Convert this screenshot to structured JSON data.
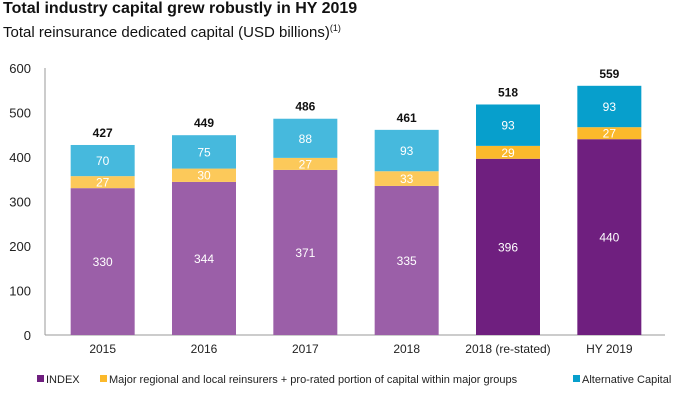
{
  "chart_data": {
    "type": "bar",
    "stacked": true,
    "title": "Total industry capital grew robustly in HY 2019",
    "subtitle": "Total reinsurance dedicated capital (USD billions)",
    "subtitle_footnote": "(1)",
    "xlabel": "",
    "ylabel": "",
    "ylim": [
      0,
      600
    ],
    "yticks": [
      0,
      100,
      200,
      300,
      400,
      500,
      600
    ],
    "grid": false,
    "legend_position": "bottom",
    "categories": [
      "2015",
      "2016",
      "2017",
      "2018",
      "2018 (re-stated)",
      "HY 2019"
    ],
    "series": [
      {
        "name": "INDEX",
        "values": [
          330,
          344,
          371,
          335,
          396,
          440
        ],
        "color": "#9b5fa8",
        "color_recent": "#6f1f7f"
      },
      {
        "name": "Major regional and local reinsurers + pro-rated portion of capital within major groups",
        "values": [
          27,
          30,
          27,
          33,
          29,
          27
        ],
        "color": "#fcc95a",
        "color_recent": "#fbb92b"
      },
      {
        "name": "Alternative Capital",
        "values": [
          70,
          75,
          88,
          93,
          93,
          93
        ],
        "color": "#46b9dd",
        "color_recent": "#079fcc"
      }
    ],
    "totals": [
      427,
      449,
      486,
      461,
      518,
      559
    ],
    "recent_categories": [
      "2018 (re-stated)",
      "HY 2019"
    ]
  }
}
